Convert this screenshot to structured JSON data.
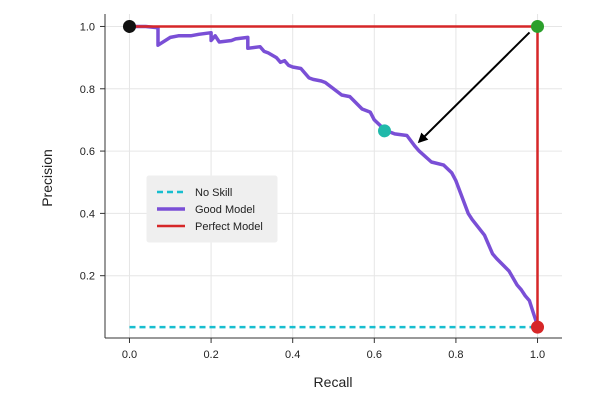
{
  "chart_data": {
    "type": "line",
    "title": "",
    "xlabel": "Recall",
    "ylabel": "Precision",
    "xlim": [
      -0.06,
      1.06
    ],
    "ylim": [
      0.0,
      1.04
    ],
    "xticks": [
      0.0,
      0.2,
      0.4,
      0.6,
      0.8,
      1.0
    ],
    "yticks": [
      0.2,
      0.4,
      0.6,
      0.8,
      1.0
    ],
    "xtick_labels": [
      "0.0",
      "0.2",
      "0.4",
      "0.6",
      "0.8",
      "1.0"
    ],
    "ytick_labels": [
      "0.2",
      "0.4",
      "0.6",
      "0.8",
      "1.0"
    ],
    "grid": true,
    "legend_position": "center-left",
    "series": [
      {
        "name": "No Skill",
        "style": "dashed",
        "color": "#17becf",
        "x": [
          0.0,
          1.0
        ],
        "y": [
          0.035,
          0.035
        ]
      },
      {
        "name": "Good Model",
        "style": "solid",
        "color": "#7a4fd6",
        "x": [
          0.0,
          0.04,
          0.07,
          0.07,
          0.1,
          0.12,
          0.15,
          0.17,
          0.2,
          0.2,
          0.21,
          0.22,
          0.25,
          0.26,
          0.29,
          0.29,
          0.32,
          0.33,
          0.34,
          0.36,
          0.37,
          0.38,
          0.39,
          0.4,
          0.42,
          0.44,
          0.45,
          0.47,
          0.48,
          0.52,
          0.54,
          0.57,
          0.59,
          0.6,
          0.62,
          0.63,
          0.65,
          0.68,
          0.7,
          0.71,
          0.74,
          0.77,
          0.79,
          0.8,
          0.81,
          0.83,
          0.84,
          0.87,
          0.89,
          0.9,
          0.93,
          0.95,
          0.96,
          0.97,
          0.98,
          0.99,
          1.0
        ],
        "y": [
          1.0,
          1.0,
          0.996,
          0.94,
          0.965,
          0.97,
          0.97,
          0.975,
          0.98,
          0.955,
          0.97,
          0.95,
          0.955,
          0.96,
          0.965,
          0.93,
          0.935,
          0.92,
          0.915,
          0.9,
          0.885,
          0.89,
          0.875,
          0.87,
          0.865,
          0.835,
          0.83,
          0.825,
          0.82,
          0.78,
          0.775,
          0.735,
          0.725,
          0.7,
          0.675,
          0.665,
          0.655,
          0.65,
          0.615,
          0.6,
          0.565,
          0.555,
          0.53,
          0.505,
          0.47,
          0.4,
          0.38,
          0.33,
          0.27,
          0.255,
          0.215,
          0.17,
          0.155,
          0.135,
          0.12,
          0.08,
          0.04
        ]
      },
      {
        "name": "Perfect Model",
        "style": "solid",
        "color": "#d62728",
        "x": [
          0.0,
          1.0,
          1.0
        ],
        "y": [
          1.0,
          1.0,
          0.035
        ]
      }
    ],
    "markers": [
      {
        "x": 0.0,
        "y": 1.0,
        "color": "#111111"
      },
      {
        "x": 1.0,
        "y": 1.0,
        "color": "#2ca02c"
      },
      {
        "x": 0.625,
        "y": 0.665,
        "color": "#20b9aa"
      },
      {
        "x": 1.0,
        "y": 0.035,
        "color": "#d62728"
      }
    ],
    "annotations": [
      {
        "type": "arrow",
        "from": [
          1.0,
          1.0
        ],
        "to": [
          0.71,
          0.63
        ],
        "color": "#000000"
      }
    ]
  }
}
